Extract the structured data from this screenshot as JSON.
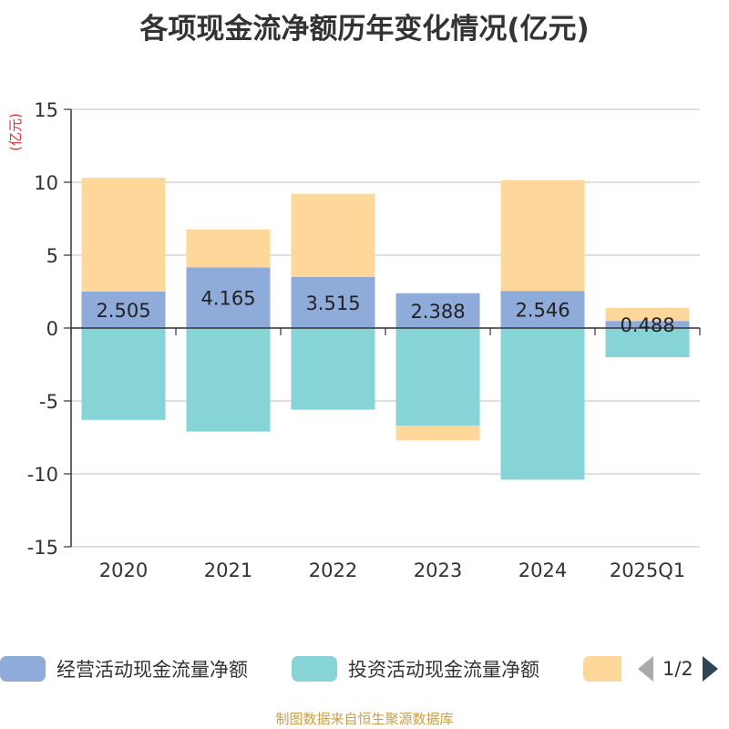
{
  "title": "各项现金流净额历年变化情况(亿元)",
  "source": "制图数据来自恒生聚源数据库",
  "legend_page": "1/2",
  "colors": {
    "operating": "#8fabd9",
    "investing": "#87d4d6",
    "financing": "#fdd89a",
    "axis": "#333333",
    "grid": "#cccccc",
    "unit_label": "#e0302f"
  },
  "chart_data": {
    "type": "bar",
    "stacked": true,
    "title": "各项现金流净额历年变化情况(亿元)",
    "ylabel": "(亿元)",
    "ylim": [
      -15,
      15
    ],
    "yticks": [
      15,
      10,
      5,
      0,
      -5,
      -10,
      -15
    ],
    "grid": true,
    "legend_position": "bottom",
    "categories": [
      "2020",
      "2021",
      "2022",
      "2023",
      "2024",
      "2025Q1"
    ],
    "series": [
      {
        "name": "经营活动现金流量净额",
        "values": [
          2.505,
          4.165,
          3.515,
          2.388,
          2.546,
          0.488
        ],
        "labels": [
          "2.505",
          "4.165",
          "3.515",
          "2.388",
          "2.546",
          "0.488"
        ]
      },
      {
        "name": "投资活动现金流量净额",
        "values": [
          -6.3,
          -7.1,
          -5.6,
          -6.7,
          -10.4,
          -2.0
        ]
      },
      {
        "name": "",
        "values": [
          7.8,
          2.6,
          5.7,
          -1.0,
          7.6,
          0.9
        ]
      }
    ]
  }
}
